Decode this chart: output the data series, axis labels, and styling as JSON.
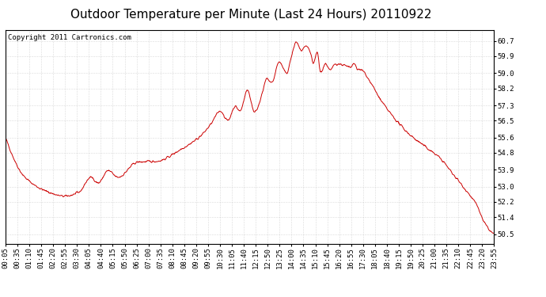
{
  "title": "Outdoor Temperature per Minute (Last 24 Hours) 20110922",
  "copyright_text": "Copyright 2011 Cartronics.com",
  "line_color": "#cc0000",
  "bg_color": "#ffffff",
  "grid_color": "#bbbbbb",
  "yticks": [
    50.5,
    51.4,
    52.2,
    53.0,
    53.9,
    54.8,
    55.6,
    56.5,
    57.3,
    58.2,
    59.0,
    59.9,
    60.7
  ],
  "ylim": [
    50.0,
    61.3
  ],
  "xtick_labels": [
    "00:05",
    "00:35",
    "01:10",
    "01:45",
    "02:20",
    "02:55",
    "03:30",
    "04:05",
    "04:40",
    "05:15",
    "05:50",
    "06:25",
    "07:00",
    "07:35",
    "08:10",
    "08:45",
    "09:20",
    "09:55",
    "10:30",
    "11:05",
    "11:40",
    "12:15",
    "12:50",
    "13:25",
    "14:00",
    "14:35",
    "15:10",
    "15:45",
    "16:20",
    "16:55",
    "17:30",
    "18:05",
    "18:40",
    "19:15",
    "19:50",
    "20:25",
    "21:00",
    "21:35",
    "22:10",
    "22:45",
    "23:20",
    "23:55"
  ],
  "title_fontsize": 11,
  "axis_fontsize": 6.5,
  "copyright_fontsize": 6.5,
  "keypoints_x": [
    0.0,
    0.04,
    0.09,
    0.12,
    0.15,
    0.175,
    0.19,
    0.21,
    0.23,
    0.27,
    0.31,
    0.36,
    0.4,
    0.42,
    0.44,
    0.455,
    0.47,
    0.48,
    0.495,
    0.51,
    0.525,
    0.535,
    0.545,
    0.56,
    0.575,
    0.585,
    0.595,
    0.605,
    0.615,
    0.625,
    0.63,
    0.638,
    0.645,
    0.655,
    0.665,
    0.675,
    0.69,
    0.705,
    0.715,
    0.72,
    0.73,
    0.745,
    0.77,
    0.8,
    0.83,
    0.86,
    0.89,
    0.915,
    0.94,
    0.965,
    0.98,
    1.0
  ],
  "keypoints_y": [
    55.6,
    53.5,
    52.7,
    52.5,
    52.7,
    53.5,
    53.2,
    53.85,
    53.5,
    54.3,
    54.35,
    55.0,
    55.7,
    56.3,
    57.0,
    56.5,
    57.25,
    57.0,
    58.1,
    56.95,
    57.9,
    58.7,
    58.5,
    59.6,
    59.0,
    59.85,
    60.65,
    60.2,
    60.4,
    60.0,
    59.5,
    60.1,
    59.05,
    59.5,
    59.15,
    59.5,
    59.45,
    59.3,
    59.5,
    59.2,
    59.15,
    58.6,
    57.5,
    56.5,
    55.7,
    55.1,
    54.5,
    53.7,
    52.9,
    52.0,
    51.1,
    50.5
  ]
}
